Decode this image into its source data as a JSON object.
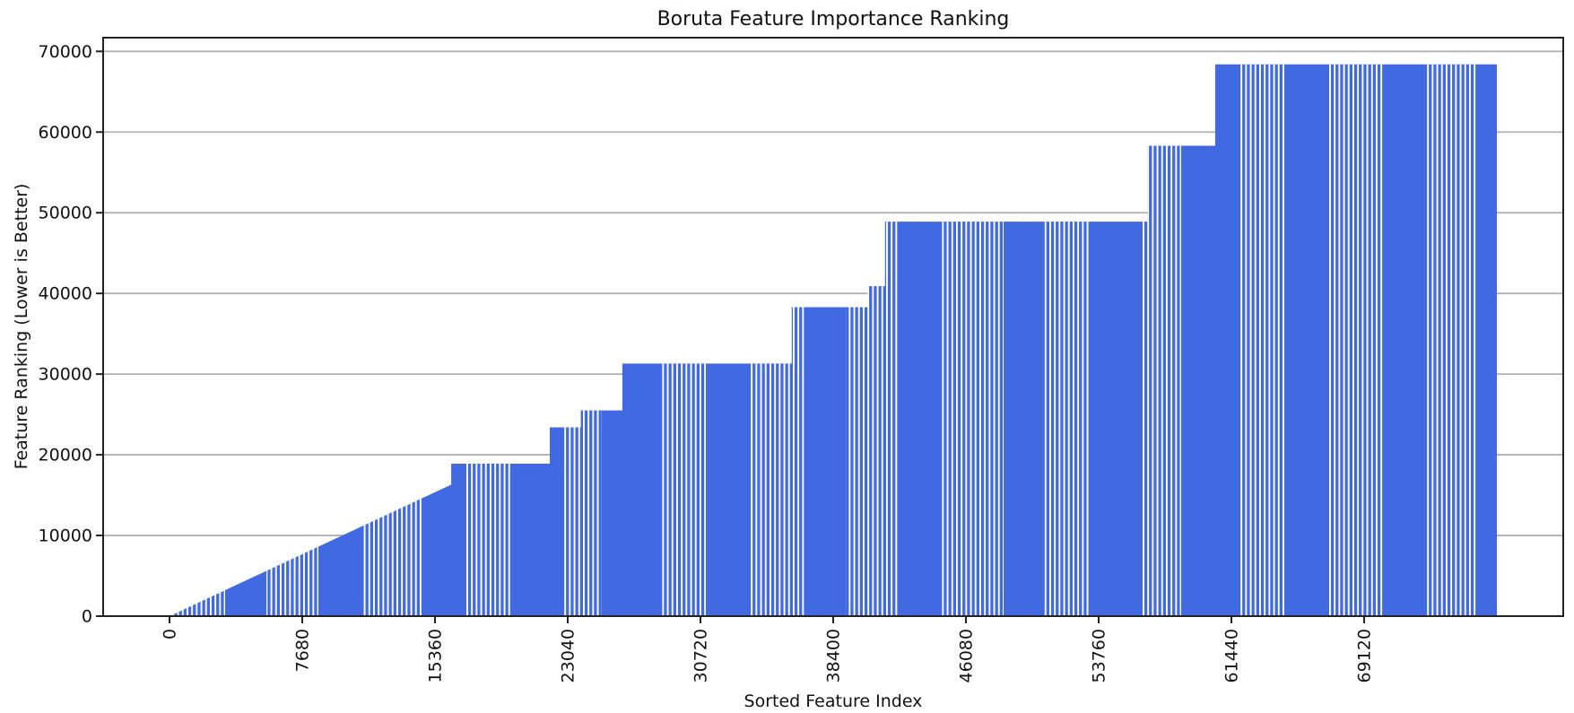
{
  "chart_data": {
    "type": "bar",
    "title": "Boruta Feature Importance Ranking",
    "xlabel": "Sorted Feature Index",
    "ylabel": "Feature Ranking (Lower is Better)",
    "x_ticks": [
      0,
      7680,
      15360,
      23040,
      30720,
      38400,
      46080,
      53760,
      61440,
      69120
    ],
    "y_ticks": [
      0,
      10000,
      20000,
      30000,
      40000,
      50000,
      60000,
      70000
    ],
    "xlim": [
      -3840,
      80640
    ],
    "ylim": [
      0,
      71700
    ],
    "n_features": 76800,
    "x_tick_rotation": 90,
    "grid": true,
    "legend": null,
    "bar_color": "#4169E1",
    "grid_color": "#B0B0B0",
    "spine_color": "#222222",
    "ranking_profile": [
      {
        "type": "ramp",
        "from": 0,
        "to": 16300,
        "start_value": 0,
        "end_value": 16300
      },
      {
        "type": "flat",
        "from": 16300,
        "to": 22000,
        "value": 18900
      },
      {
        "type": "flat",
        "from": 22000,
        "to": 23800,
        "value": 23400
      },
      {
        "type": "flat",
        "from": 23800,
        "to": 26200,
        "value": 25500
      },
      {
        "type": "flat",
        "from": 26200,
        "to": 36000,
        "value": 31300
      },
      {
        "type": "flat",
        "from": 36000,
        "to": 40400,
        "value": 38300
      },
      {
        "type": "flat",
        "from": 40400,
        "to": 41400,
        "value": 40900
      },
      {
        "type": "flat",
        "from": 41400,
        "to": 56600,
        "value": 48900
      },
      {
        "type": "flat",
        "from": 56600,
        "to": 60500,
        "value": 58300
      },
      {
        "type": "flat",
        "from": 60500,
        "to": 76800,
        "value": 68400
      }
    ]
  }
}
